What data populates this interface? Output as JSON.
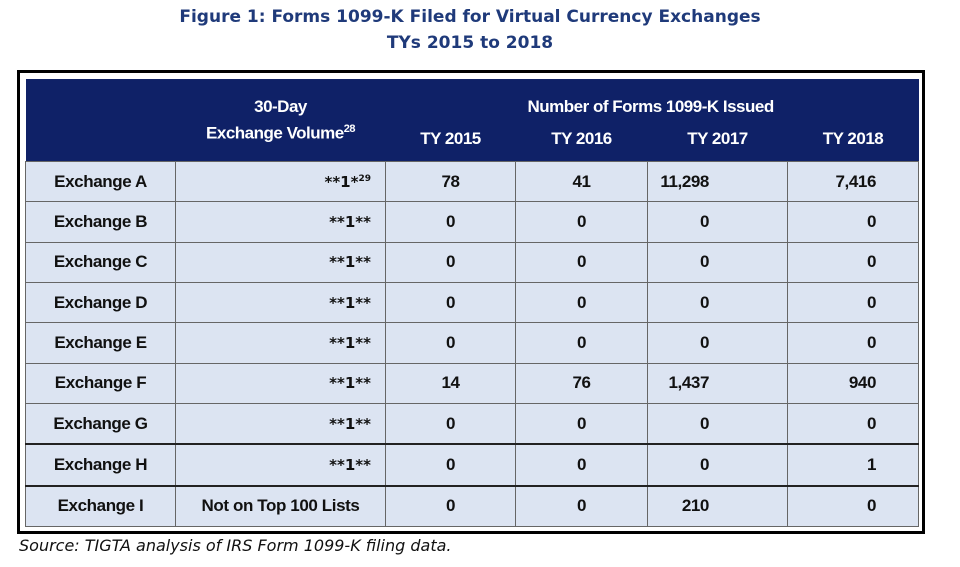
{
  "title": {
    "line1": "Figure 1:  Forms 1099-K Filed for Virtual Currency Exchanges",
    "line2": "TYs 2015 to 2018"
  },
  "table": {
    "header": {
      "volume_line1": "30-Day",
      "volume_line2": "Exchange Volume",
      "volume_footnote": "28",
      "span_label": "Number of Forms 1099-K Issued",
      "years": [
        "TY 2015",
        "TY 2016",
        "TY 2017",
        "TY 2018"
      ]
    },
    "rows": [
      {
        "name": "Exchange A",
        "volume": "**1*",
        "volume_footnote": "29",
        "ty2015": "78",
        "ty2016": "41",
        "ty2017": "11,298",
        "ty2018": "7,416"
      },
      {
        "name": "Exchange B",
        "volume": "**1**",
        "ty2015": "0",
        "ty2016": "0",
        "ty2017": "0",
        "ty2018": "0"
      },
      {
        "name": "Exchange C",
        "volume": "**1**",
        "ty2015": "0",
        "ty2016": "0",
        "ty2017": "0",
        "ty2018": "0"
      },
      {
        "name": "Exchange D",
        "volume": "**1**",
        "ty2015": "0",
        "ty2016": "0",
        "ty2017": "0",
        "ty2018": "0"
      },
      {
        "name": "Exchange E",
        "volume": "**1**",
        "ty2015": "0",
        "ty2016": "0",
        "ty2017": "0",
        "ty2018": "0"
      },
      {
        "name": "Exchange F",
        "volume": "**1**",
        "ty2015": "14",
        "ty2016": "76",
        "ty2017": "1,437",
        "ty2018": "940"
      },
      {
        "name": "Exchange G",
        "volume": "**1**",
        "ty2015": "0",
        "ty2016": "0",
        "ty2017": "0",
        "ty2018": "0"
      },
      {
        "name": "Exchange H",
        "volume": "**1**",
        "ty2015": "0",
        "ty2016": "0",
        "ty2017": "0",
        "ty2018": "1"
      },
      {
        "name": "Exchange I",
        "volume": "Not on Top 100 Lists",
        "ty2015": "0",
        "ty2016": "0",
        "ty2017": "210",
        "ty2018": "0"
      }
    ]
  },
  "source": "Source:  TIGTA analysis of IRS Form 1099-K filing data."
}
